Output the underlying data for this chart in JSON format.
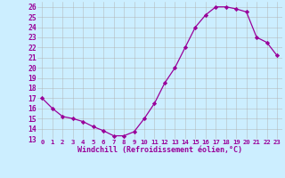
{
  "x": [
    0,
    1,
    2,
    3,
    4,
    5,
    6,
    7,
    8,
    9,
    10,
    11,
    12,
    13,
    14,
    15,
    16,
    17,
    18,
    19,
    20,
    21,
    22,
    23
  ],
  "y": [
    17,
    16,
    15.2,
    15,
    14.7,
    14.2,
    13.8,
    13.3,
    13.3,
    13.7,
    15,
    16.5,
    18.5,
    20,
    22,
    24,
    25.2,
    26,
    26,
    25.8,
    25.5,
    23,
    22.5,
    21.2
  ],
  "line_color": "#990099",
  "marker": "D",
  "marker_size": 2.2,
  "linewidth": 0.9,
  "xlim": [
    -0.5,
    23.5
  ],
  "ylim": [
    13,
    26.5
  ],
  "yticks": [
    13,
    14,
    15,
    16,
    17,
    18,
    19,
    20,
    21,
    22,
    23,
    24,
    25,
    26
  ],
  "xtick_labels": [
    "0",
    "1",
    "2",
    "3",
    "4",
    "5",
    "6",
    "7",
    "8",
    "9",
    "10",
    "11",
    "12",
    "13",
    "14",
    "15",
    "16",
    "17",
    "18",
    "19",
    "20",
    "21",
    "22",
    "23"
  ],
  "xlabel": "Windchill (Refroidissement éolien,°C)",
  "background_color": "#cceeff",
  "grid_color": "#b0b0b0",
  "tick_color": "#990099",
  "xlabel_fontsize": 6.0,
  "ytick_fontsize": 5.8,
  "xtick_fontsize": 5.2
}
